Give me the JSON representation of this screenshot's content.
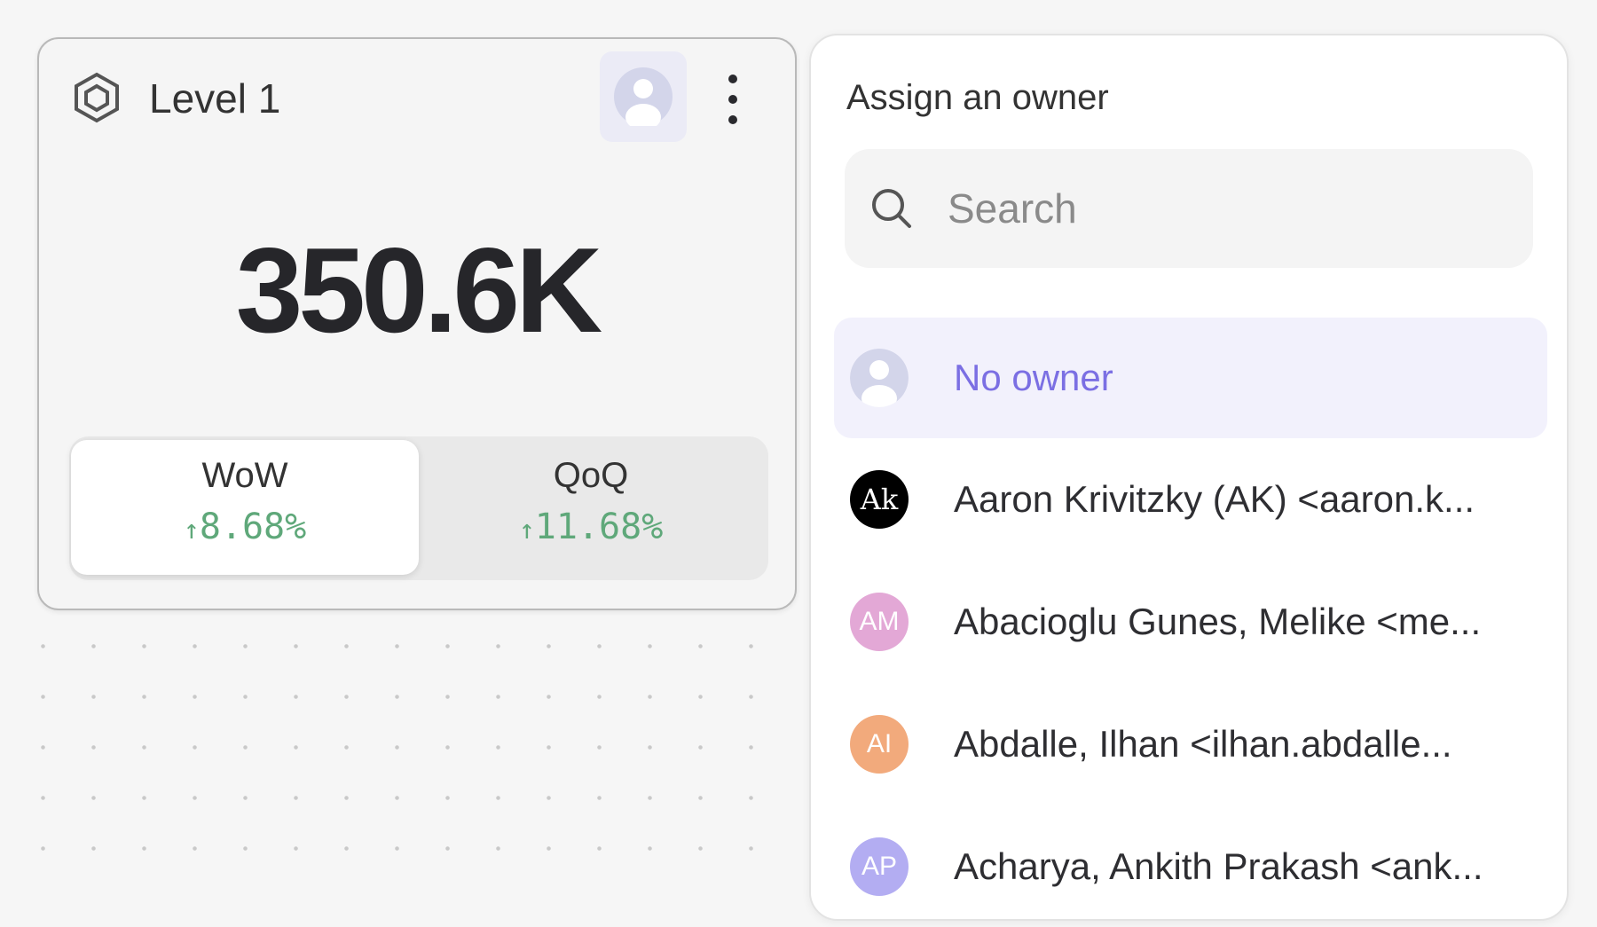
{
  "card": {
    "title": "Level 1",
    "value": "350.6K",
    "comparisons": [
      {
        "label": "WoW",
        "arrow": "↑",
        "change": "8.68%",
        "active": true
      },
      {
        "label": "QoQ",
        "arrow": "↑",
        "change": "11.68%",
        "active": false
      }
    ],
    "icons": {
      "level": "hexagon-icon",
      "owner": "user-avatar-icon",
      "menu": "kebab-menu-icon"
    },
    "positive_color": "#5fa87a"
  },
  "owner_panel": {
    "title": "Assign an owner",
    "search": {
      "placeholder": "Search",
      "value": ""
    },
    "options": [
      {
        "name": "No owner",
        "initials": "",
        "color": "#d3d5ea",
        "selected": true
      },
      {
        "name": "Aaron Krivitzky (AK) <aaron.k...",
        "initials": "Ak",
        "color": "#000000",
        "selected": false
      },
      {
        "name": "Abacioglu Gunes, Melike <me...",
        "initials": "AM",
        "color": "#e3a8d6",
        "selected": false
      },
      {
        "name": "Abdalle, Ilhan <ilhan.abdalle...",
        "initials": "AI",
        "color": "#f2aa7c",
        "selected": false
      },
      {
        "name": "Acharya, Ankith Prakash <ank...",
        "initials": "AP",
        "color": "#b3adf2",
        "selected": false
      }
    ],
    "accent": "#7b6fe3"
  }
}
